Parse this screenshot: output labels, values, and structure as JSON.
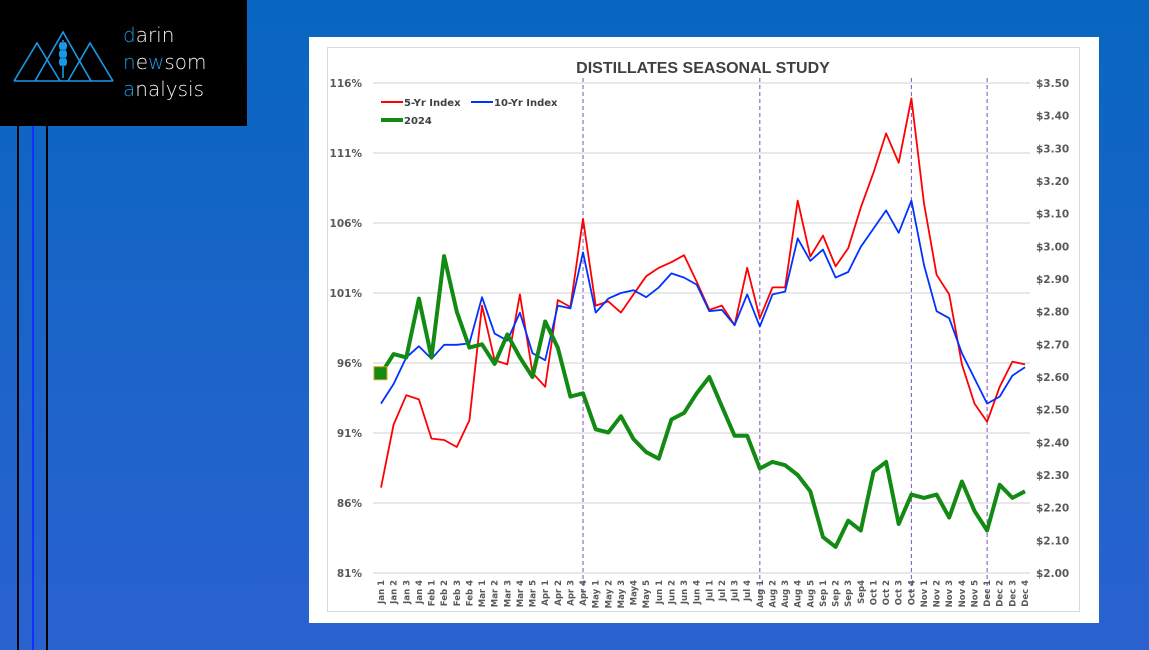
{
  "logo": {
    "line1_accent": "d",
    "line1_rest": "arin",
    "line2_accent": "n",
    "line2_mid": "e",
    "line2_accent2": "w",
    "line2_rest": "som",
    "line3_accent": "a",
    "line3_rest": "nalysis",
    "accent_color": "#1a9ae6"
  },
  "chart_data": {
    "type": "line",
    "title": "DISTILLATES SEASONAL STUDY",
    "categories": [
      "Jan 1",
      "Jan 2",
      "Jan 3",
      "Jan 4",
      "Feb 1",
      "Feb 2",
      "Feb 3",
      "Feb 4",
      "Mar 1",
      "Mar 2",
      "Mar 3",
      "Mar 4",
      "Mar 5",
      "Apr 1",
      "Apr 2",
      "Apr 3",
      "Apr 4",
      "May 1",
      "May 2",
      "May 3",
      "May4",
      "May 5",
      "Jun 1",
      "Jun 2",
      "Jun 3",
      "Jun 4",
      "Jul 1",
      "Jul 2",
      "Jul 3",
      "Jul 4",
      "Aug 1",
      "Aug 2",
      "Aug 3",
      "Aug 4",
      "Aug 5",
      "Sep 1",
      "Sep 2",
      "Sep 3",
      "Sep4",
      "Oct 1",
      "Oct 2",
      "Oct 3",
      "Oct 4",
      "Nov 1",
      "Nov 2",
      "Nov 3",
      "Nov 4",
      "Nov 5",
      "Dec 1",
      "Dec 2",
      "Dec 3",
      "Dec 4"
    ],
    "y_left": {
      "ticks": [
        "116%",
        "111%",
        "106%",
        "101%",
        "96%",
        "91%",
        "86%",
        "81%"
      ],
      "range": [
        81,
        116
      ]
    },
    "y_right": {
      "ticks": [
        "$3.50",
        "$3.40",
        "$3.30",
        "$3.20",
        "$3.10",
        "$3.00",
        "$2.90",
        "$2.80",
        "$2.70",
        "$2.60",
        "$2.50",
        "$2.40",
        "$2.30",
        "$2.20",
        "$2.10",
        "$2.00"
      ],
      "range": [
        2.0,
        3.5
      ]
    },
    "grid": true,
    "legend_position": "top-left",
    "vertical_markers": [
      "Apr 4",
      "Aug 1",
      "Oct 4",
      "Dec 1"
    ],
    "series": [
      {
        "name": "5-Yr Index",
        "axis": "left",
        "color": "#ff0000",
        "values": [
          87.1,
          91.6,
          93.7,
          93.4,
          90.6,
          90.5,
          90.0,
          91.9,
          100.1,
          96.2,
          95.9,
          100.9,
          95.3,
          94.3,
          100.5,
          100.0,
          106.3,
          100.1,
          100.4,
          99.6,
          100.9,
          102.2,
          102.8,
          103.2,
          103.7,
          101.8,
          99.8,
          100.1,
          98.7,
          102.8,
          99.2,
          101.4,
          101.4,
          107.6,
          103.6,
          105.1,
          102.9,
          104.2,
          107.1,
          109.6,
          112.4,
          110.3,
          114.9,
          107.4,
          102.3,
          100.9,
          95.9,
          93.1,
          91.8,
          94.3,
          96.1,
          95.9
        ]
      },
      {
        "name": "10-Yr Index",
        "axis": "left",
        "color": "#0033ff",
        "values": [
          93.1,
          94.5,
          96.4,
          97.2,
          96.3,
          97.3,
          97.3,
          97.4,
          100.7,
          98.1,
          97.6,
          99.6,
          96.7,
          96.2,
          100.1,
          99.9,
          103.9,
          99.6,
          100.6,
          101.0,
          101.2,
          100.7,
          101.4,
          102.4,
          102.1,
          101.6,
          99.7,
          99.8,
          98.7,
          100.9,
          98.6,
          100.9,
          101.1,
          104.9,
          103.3,
          104.1,
          102.1,
          102.5,
          104.3,
          105.6,
          106.9,
          105.3,
          107.6,
          103.0,
          99.7,
          99.2,
          96.7,
          94.9,
          93.1,
          93.6,
          95.1,
          95.7
        ]
      },
      {
        "name": "2024",
        "axis": "right",
        "color": "#138a13",
        "values": [
          2.61,
          2.67,
          2.66,
          2.84,
          2.66,
          2.97,
          2.8,
          2.69,
          2.7,
          2.64,
          2.73,
          2.66,
          2.6,
          2.77,
          2.69,
          2.54,
          2.55,
          2.44,
          2.43,
          2.48,
          2.41,
          2.37,
          2.35,
          2.47,
          2.49,
          2.55,
          2.6,
          2.51,
          2.42,
          2.42,
          2.32,
          2.34,
          2.33,
          2.3,
          2.25,
          2.11,
          2.08,
          2.16,
          2.13,
          2.31,
          2.34,
          2.15,
          2.24,
          2.23,
          2.24,
          2.17,
          2.28,
          2.19,
          2.13,
          2.27,
          2.23,
          2.25
        ]
      }
    ]
  }
}
